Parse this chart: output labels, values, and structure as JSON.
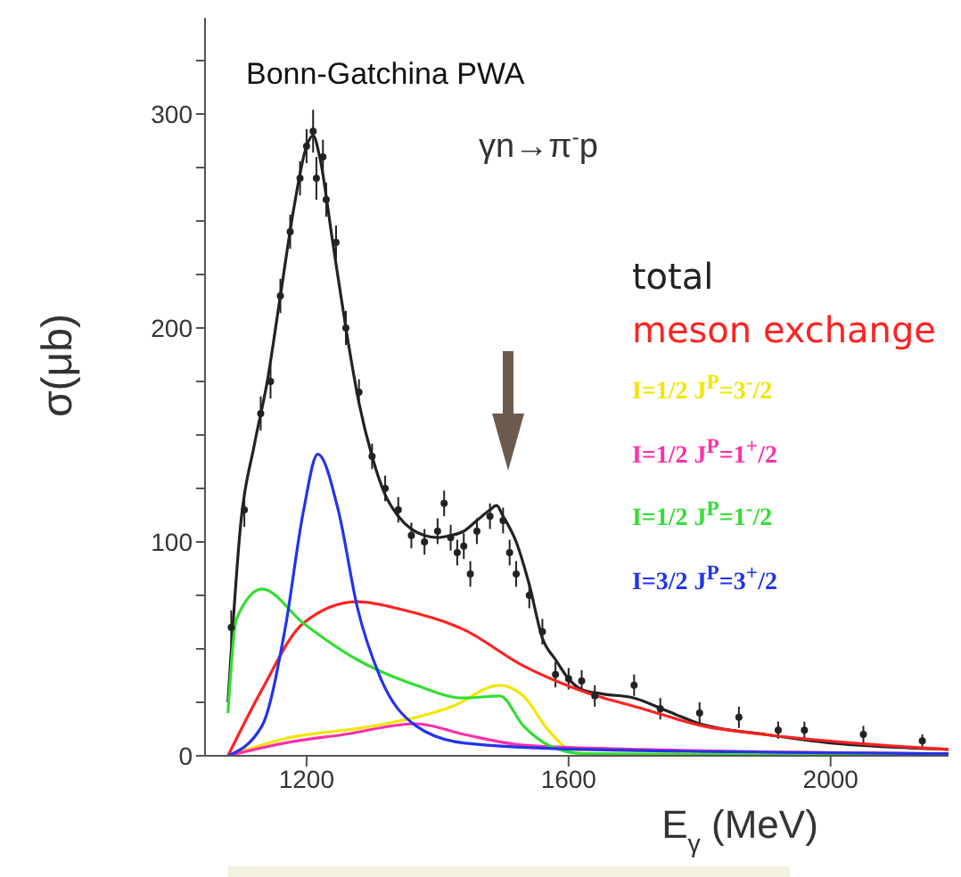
{
  "chart_data": {
    "type": "line",
    "title": "Bonn-Gatchina PWA",
    "subtitle": "γn→π$^{-}$p",
    "xlabel": "E$_{γ}$ (MeV)",
    "ylabel": "σ(μb)",
    "xlim": [
      1045,
      2180
    ],
    "xticks": [
      1200,
      1600,
      2000
    ],
    "ylim": [
      0,
      345
    ],
    "yticks": [
      0,
      {
        "value": 25,
        "label": null
      },
      {
        "value": 50,
        "label": null
      },
      {
        "value": 75,
        "label": null
      },
      100,
      {
        "value": 125,
        "label": null
      },
      {
        "value": 150,
        "label": null
      },
      {
        "value": 175,
        "label": null
      },
      200,
      {
        "value": 225,
        "label": null
      },
      {
        "value": 250,
        "label": null
      },
      {
        "value": 275,
        "label": null
      },
      300,
      {
        "value": 325,
        "label": null
      }
    ],
    "grid": false,
    "legend": "right",
    "marker": "none",
    "line_style": "solid",
    "series": [
      {
        "type": "scatter",
        "color": "#222222",
        "marker": "circle",
        "x": [
          1085,
          1105,
          1130,
          1145,
          1160,
          1175,
          1190,
          1200,
          1210,
          1215,
          1225,
          1230,
          1245,
          1260,
          1280,
          1300,
          1320,
          1340,
          1360,
          1380,
          1400,
          1410,
          1420,
          1430,
          1440,
          1450,
          1460,
          1480,
          1500,
          1510,
          1520,
          1540,
          1560,
          1580,
          1600,
          1620,
          1640,
          1700,
          1740,
          1800,
          1860,
          1920,
          1960,
          2050,
          2140
        ],
        "values": [
          60,
          115,
          160,
          175,
          215,
          245,
          270,
          285,
          292,
          270,
          280,
          260,
          240,
          200,
          170,
          140,
          125,
          115,
          103,
          100,
          105,
          118,
          102,
          95,
          98,
          85,
          105,
          112,
          110,
          95,
          85,
          75,
          58,
          38,
          36,
          35,
          28,
          33,
          22,
          20,
          18,
          12,
          12,
          10,
          7
        ],
        "errors": [
          8,
          8,
          8,
          8,
          8,
          8,
          8,
          8,
          10,
          10,
          8,
          8,
          8,
          8,
          6,
          6,
          6,
          6,
          6,
          6,
          6,
          6,
          6,
          6,
          6,
          6,
          6,
          6,
          6,
          6,
          6,
          6,
          6,
          6,
          5,
          5,
          5,
          5,
          5,
          5,
          5,
          4,
          4,
          4,
          3
        ]
      },
      {
        "name": "total",
        "color": "#222222",
        "x": [
          1080,
          1100,
          1120,
          1140,
          1160,
          1180,
          1200,
          1210,
          1220,
          1240,
          1260,
          1280,
          1300,
          1320,
          1340,
          1360,
          1380,
          1400,
          1420,
          1440,
          1460,
          1480,
          1490,
          1500,
          1520,
          1540,
          1560,
          1580,
          1600,
          1620,
          1650,
          1700,
          1750,
          1800,
          1900,
          2000,
          2100,
          2180
        ],
        "values": [
          25,
          110,
          145,
          175,
          215,
          255,
          285,
          290,
          280,
          240,
          200,
          165,
          140,
          122,
          112,
          106,
          103,
          102,
          103,
          105,
          110,
          115,
          117,
          112,
          100,
          80,
          55,
          45,
          36,
          31,
          29,
          27,
          21,
          15,
          10,
          6,
          4,
          3
        ]
      },
      {
        "name": "meson exchange",
        "color": "#ff2222",
        "x": [
          1080,
          1132,
          1195,
          1277,
          1350,
          1440,
          1531,
          1623,
          1713,
          1804,
          1897,
          2033,
          2180
        ],
        "values": [
          0,
          31,
          62,
          72,
          68,
          59,
          42,
          30,
          22,
          14,
          10,
          6,
          3
        ]
      },
      {
        "name": "I=1/2  J$^{P}$=3$^{-}$/2",
        "color": "#f2e600",
        "x": [
          1080,
          1167,
          1304,
          1422,
          1495,
          1531,
          1569,
          1605,
          2180
        ],
        "values": [
          0,
          8,
          14,
          23,
          33,
          28,
          12,
          3,
          1
        ]
      },
      {
        "name": "I=1/2  J$^{P}$=1$^{+}$/2",
        "color": "#ff2fa8",
        "x": [
          1080,
          1167,
          1258,
          1367,
          1440,
          1531,
          1713,
          2180
        ],
        "values": [
          0,
          6,
          10,
          15,
          10,
          5,
          3,
          1
        ]
      },
      {
        "name": "I=1/2  J$^{P}$=1$^{-}$/2",
        "color": "#33dd33",
        "x": [
          1080,
          1093,
          1132,
          1195,
          1277,
          1367,
          1440,
          1495,
          1531,
          1569,
          1623,
          2180
        ],
        "values": [
          20,
          64,
          78,
          62,
          45,
          33,
          27,
          28,
          14,
          5,
          1,
          0
        ]
      },
      {
        "name": "I=3/2  J$^{P}$=3$^{+}$/2",
        "color": "#2233ee",
        "x": [
          1080,
          1132,
          1167,
          1195,
          1217,
          1249,
          1277,
          1312,
          1367,
          1440,
          1623,
          2180
        ],
        "values": [
          0,
          14,
          59,
          114,
          141,
          114,
          70,
          37,
          14,
          6,
          3,
          1
        ]
      }
    ]
  }
}
